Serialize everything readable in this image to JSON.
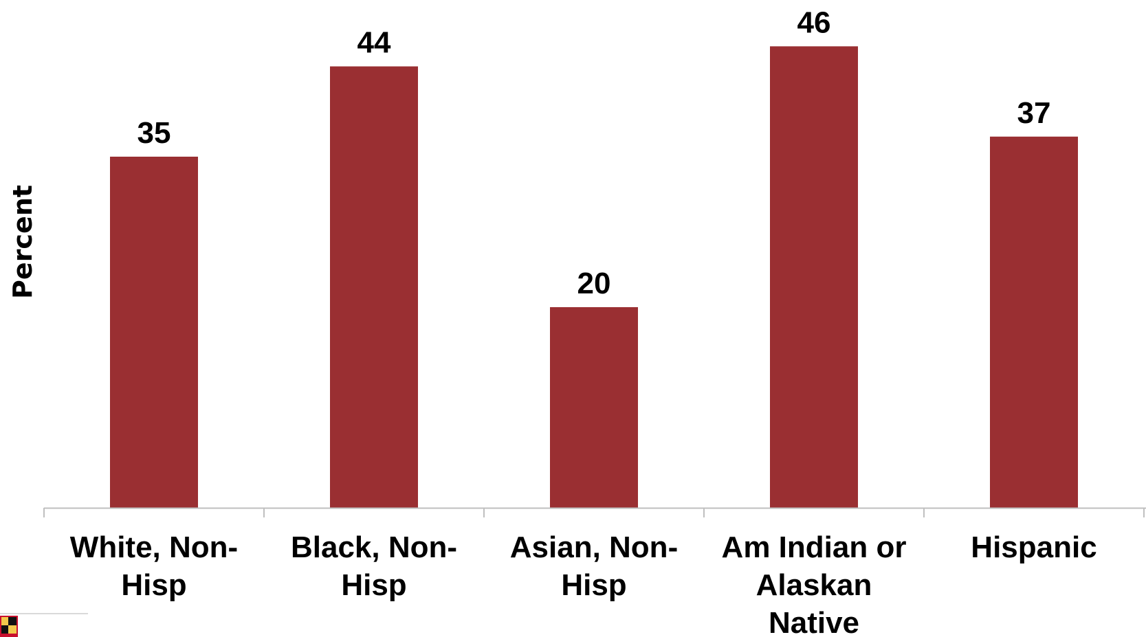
{
  "chart_data": {
    "type": "bar",
    "categories": [
      [
        "White, Non-",
        "Hisp"
      ],
      [
        "Black, Non-",
        "Hisp"
      ],
      [
        "Asian, Non-",
        "Hisp"
      ],
      [
        "Am Indian or",
        "Alaskan",
        "Native"
      ],
      [
        "Hispanic"
      ]
    ],
    "values": [
      35,
      44,
      20,
      46,
      37
    ],
    "data_labels": [
      "35",
      "44",
      "20",
      "46",
      "37"
    ],
    "title": "",
    "xlabel": "",
    "ylabel": "Percent",
    "ylim": [
      0,
      50
    ],
    "grid": false,
    "legend": "none",
    "bar_color": "#9A2F32",
    "axis_color": "#BFBFBF"
  }
}
